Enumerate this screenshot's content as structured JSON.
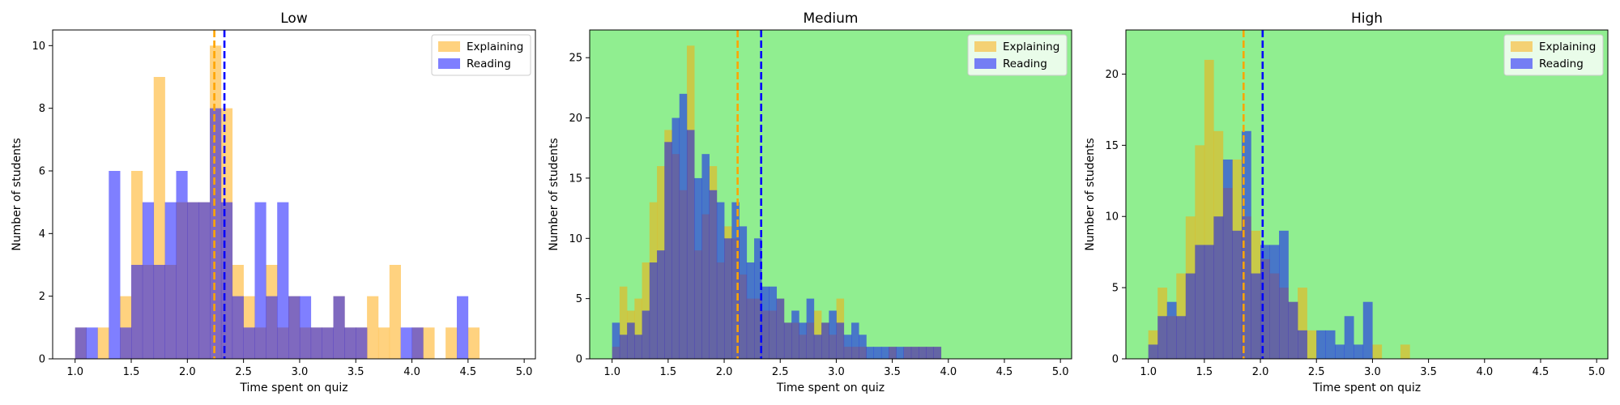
{
  "chart_data": [
    {
      "type": "bar",
      "title": "Low",
      "xlabel": "Time spent on quiz",
      "ylabel": "Number of students",
      "xlim": [
        0.8,
        5.1
      ],
      "ylim": [
        0,
        10.5
      ],
      "xticks": [
        "1.0",
        "1.5",
        "2.0",
        "2.5",
        "3.0",
        "3.5",
        "4.0",
        "4.5",
        "5.0"
      ],
      "yticks": [
        "0",
        "2",
        "4",
        "6",
        "8",
        "10"
      ],
      "background": "#ffffff",
      "legend": "top-right",
      "bin_edges_start": 1.0,
      "bin_width": 0.1,
      "series": [
        {
          "name": "Explaining",
          "color": "#ffa500",
          "opacity": 0.5,
          "mean_line": 2.24,
          "values": [
            1,
            0,
            1,
            0,
            2,
            6,
            3,
            9,
            3,
            5,
            5,
            5,
            10,
            8,
            3,
            2,
            1,
            3,
            1,
            2,
            1,
            1,
            1,
            2,
            1,
            1,
            2,
            1,
            3,
            0,
            1,
            1,
            0,
            1,
            0,
            1,
            0,
            0,
            0,
            0
          ]
        },
        {
          "name": "Reading",
          "color": "#0000ff",
          "opacity": 0.5,
          "mean_line": 2.33,
          "values": [
            1,
            1,
            0,
            6,
            1,
            3,
            5,
            3,
            5,
            6,
            5,
            5,
            8,
            5,
            2,
            1,
            5,
            2,
            5,
            2,
            2,
            1,
            1,
            2,
            1,
            1,
            0,
            0,
            0,
            1,
            1,
            0,
            0,
            0,
            2,
            0,
            0,
            0,
            0,
            0
          ]
        }
      ]
    },
    {
      "type": "bar",
      "title": "Medium",
      "xlabel": "Time spent on quiz",
      "ylabel": "Number of students",
      "xlim": [
        0.8,
        5.1
      ],
      "ylim": [
        0,
        27.3
      ],
      "xticks": [
        "1.0",
        "1.5",
        "2.0",
        "2.5",
        "3.0",
        "3.5",
        "4.0",
        "4.5",
        "5.0"
      ],
      "yticks": [
        "0",
        "5",
        "10",
        "15",
        "20",
        "25"
      ],
      "background": "#90ee90",
      "legend": "top-right",
      "bin_edges_start": 1.0,
      "bin_width": 0.0667,
      "series": [
        {
          "name": "Explaining",
          "color": "#ffa500",
          "opacity": 0.5,
          "mean_line": 2.12,
          "values": [
            1,
            6,
            4,
            5,
            8,
            13,
            16,
            19,
            17,
            14,
            26,
            9,
            12,
            16,
            8,
            11,
            10,
            7,
            5,
            5,
            4,
            4,
            5,
            3,
            3,
            2,
            3,
            4,
            3,
            2,
            5,
            1,
            1,
            1,
            0,
            0,
            0,
            1,
            0,
            1,
            1,
            1,
            1,
            1,
            0,
            0,
            0,
            0,
            0,
            0,
            0,
            0,
            0,
            0,
            0,
            0,
            0,
            0,
            0,
            0
          ]
        },
        {
          "name": "Reading",
          "color": "#0000ff",
          "opacity": 0.5,
          "mean_line": 2.33,
          "values": [
            3,
            2,
            3,
            2,
            4,
            8,
            9,
            18,
            20,
            22,
            19,
            15,
            17,
            14,
            13,
            10,
            13,
            11,
            8,
            10,
            6,
            6,
            5,
            3,
            4,
            3,
            5,
            2,
            3,
            4,
            3,
            2,
            3,
            2,
            1,
            1,
            1,
            1,
            1,
            1,
            1,
            1,
            1,
            1,
            0,
            0,
            0,
            0,
            0,
            0,
            0,
            0,
            0,
            0,
            0,
            0,
            0,
            0,
            0,
            0
          ]
        }
      ]
    },
    {
      "type": "bar",
      "title": "High",
      "xlabel": "Time spent on quiz",
      "ylabel": "Number of students",
      "xlim": [
        0.8,
        5.1
      ],
      "ylim": [
        0,
        23.1
      ],
      "xticks": [
        "1.0",
        "1.5",
        "2.0",
        "2.5",
        "3.0",
        "3.5",
        "4.0",
        "4.5",
        "5.0"
      ],
      "yticks": [
        "0",
        "5",
        "10",
        "15",
        "20"
      ],
      "background": "#90ee90",
      "legend": "top-right",
      "bin_edges_start": 1.0,
      "bin_width": 0.0833,
      "series": [
        {
          "name": "Explaining",
          "color": "#ffa500",
          "opacity": 0.5,
          "mean_line": 1.85,
          "values": [
            2,
            5,
            3,
            6,
            10,
            15,
            21,
            16,
            12,
            14,
            10,
            9,
            7,
            6,
            5,
            4,
            5,
            2,
            0,
            0,
            0,
            0,
            0,
            0,
            1,
            0,
            0,
            1,
            0,
            0,
            0,
            0,
            0,
            0,
            0,
            0,
            0,
            0,
            0,
            0,
            0,
            0,
            0,
            0,
            0,
            0,
            0,
            0,
            0,
            0
          ]
        },
        {
          "name": "Reading",
          "color": "#0000ff",
          "opacity": 0.5,
          "mean_line": 2.02,
          "values": [
            1,
            3,
            4,
            3,
            6,
            8,
            8,
            10,
            14,
            9,
            16,
            6,
            8,
            8,
            9,
            4,
            2,
            0,
            2,
            2,
            1,
            3,
            1,
            4,
            0,
            0,
            0,
            0,
            0,
            0,
            0,
            0,
            0,
            0,
            0,
            0,
            0,
            0,
            0,
            0,
            0,
            0,
            0,
            0,
            0,
            0,
            0,
            0,
            0,
            0
          ]
        }
      ]
    }
  ]
}
